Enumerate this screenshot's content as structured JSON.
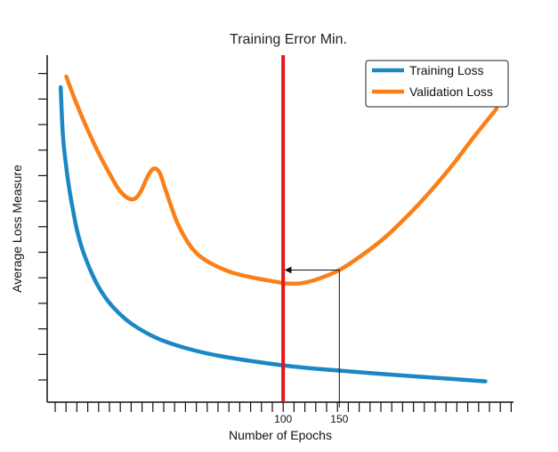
{
  "chart_data": {
    "type": "line",
    "title": "Training Error Min.",
    "xlabel": "Number of Epochs",
    "ylabel": "Average Loss Measure",
    "x_tick_labels": [
      {
        "value": 100,
        "label": "100"
      },
      {
        "value": 150,
        "label": "150"
      }
    ],
    "xlim": [
      -110,
      305
    ],
    "ylim": [
      0,
      13
    ],
    "grid": false,
    "legend_position": "top-right",
    "vertical_marker": {
      "x": 100,
      "color": "#e8141b"
    },
    "annotation_arrow": {
      "from": {
        "x": 150,
        "y": 4.95
      },
      "to": {
        "x": 102,
        "y": 4.95
      }
    },
    "series": [
      {
        "name": "Training Loss",
        "color": "#1b87c4",
        "points": [
          [
            -98,
            11.8
          ],
          [
            -96,
            10.0
          ],
          [
            -93,
            8.8
          ],
          [
            -90,
            7.9
          ],
          [
            -87,
            7.2
          ],
          [
            -84,
            6.55
          ],
          [
            -80,
            5.9
          ],
          [
            -75,
            5.3
          ],
          [
            -70,
            4.8
          ],
          [
            -64,
            4.3
          ],
          [
            -57,
            3.85
          ],
          [
            -50,
            3.5
          ],
          [
            -40,
            3.1
          ],
          [
            -30,
            2.8
          ],
          [
            -15,
            2.45
          ],
          [
            0,
            2.2
          ],
          [
            20,
            1.95
          ],
          [
            45,
            1.72
          ],
          [
            75,
            1.52
          ],
          [
            100,
            1.38
          ],
          [
            130,
            1.25
          ],
          [
            160,
            1.15
          ],
          [
            190,
            1.05
          ],
          [
            220,
            0.96
          ],
          [
            250,
            0.87
          ],
          [
            280,
            0.78
          ]
        ]
      },
      {
        "name": "Validation Loss",
        "color": "#fb7f17",
        "points": [
          [
            -93,
            12.2
          ],
          [
            -85,
            11.3
          ],
          [
            -75,
            10.3
          ],
          [
            -65,
            9.4
          ],
          [
            -55,
            8.6
          ],
          [
            -45,
            7.9
          ],
          [
            -35,
            7.6
          ],
          [
            -28,
            7.8
          ],
          [
            -20,
            8.5
          ],
          [
            -15,
            8.75
          ],
          [
            -10,
            8.6
          ],
          [
            -5,
            8.0
          ],
          [
            5,
            6.8
          ],
          [
            15,
            6.0
          ],
          [
            25,
            5.5
          ],
          [
            38,
            5.15
          ],
          [
            55,
            4.85
          ],
          [
            75,
            4.65
          ],
          [
            95,
            4.5
          ],
          [
            102,
            4.45
          ],
          [
            115,
            4.45
          ],
          [
            130,
            4.6
          ],
          [
            150,
            4.95
          ],
          [
            170,
            5.5
          ],
          [
            190,
            6.15
          ],
          [
            210,
            6.95
          ],
          [
            230,
            7.85
          ],
          [
            250,
            8.85
          ],
          [
            270,
            9.95
          ],
          [
            290,
            11.0
          ]
        ]
      }
    ]
  }
}
